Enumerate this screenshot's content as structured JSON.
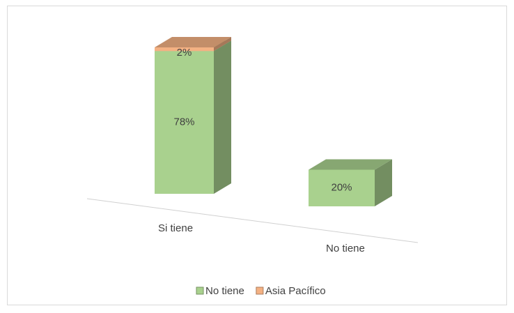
{
  "chart_data": {
    "type": "bar3d",
    "categories": [
      "Si tiene",
      "No tiene"
    ],
    "series": [
      {
        "name": "No tiene",
        "color": "#a9d18e",
        "values": [
          78,
          20
        ],
        "value_labels": [
          "78%",
          "20%"
        ]
      },
      {
        "name": "Asia Pacífico",
        "color": "#f4b183",
        "values": [
          2,
          null
        ],
        "value_labels": [
          "2%",
          null
        ]
      }
    ],
    "stacked": true,
    "legend": "bottom"
  }
}
